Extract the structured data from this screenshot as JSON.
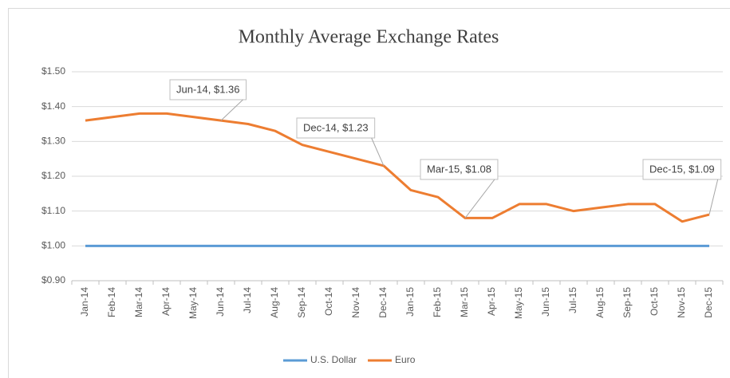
{
  "chart_data": {
    "type": "line",
    "title": "Monthly Average Exchange Rates",
    "categories": [
      "Jan-14",
      "Feb-14",
      "Mar-14",
      "Apr-14",
      "May-14",
      "Jun-14",
      "Jul-14",
      "Aug-14",
      "Sep-14",
      "Oct-14",
      "Nov-14",
      "Dec-14",
      "Jan-15",
      "Feb-15",
      "Mar-15",
      "Apr-15",
      "May-15",
      "Jun-15",
      "Jul-15",
      "Aug-15",
      "Sep-15",
      "Oct-15",
      "Nov-15",
      "Dec-15"
    ],
    "series": [
      {
        "name": "U.S. Dollar",
        "color": "#5b9bd5",
        "values": [
          1,
          1,
          1,
          1,
          1,
          1,
          1,
          1,
          1,
          1,
          1,
          1,
          1,
          1,
          1,
          1,
          1,
          1,
          1,
          1,
          1,
          1,
          1,
          1
        ]
      },
      {
        "name": "Euro",
        "color": "#ed7d31",
        "values": [
          1.36,
          1.37,
          1.38,
          1.38,
          1.37,
          1.36,
          1.35,
          1.33,
          1.29,
          1.27,
          1.25,
          1.23,
          1.16,
          1.14,
          1.08,
          1.08,
          1.12,
          1.12,
          1.1,
          1.11,
          1.12,
          1.12,
          1.07,
          1.09
        ],
        "value_labels": [
          null,
          null,
          null,
          null,
          null,
          "Jun-14, $1.36",
          null,
          null,
          null,
          null,
          null,
          "Dec-14, $1.23",
          null,
          null,
          "Mar-15, $1.08",
          null,
          null,
          null,
          null,
          null,
          null,
          null,
          null,
          "Dec-15, $1.09"
        ]
      }
    ],
    "ylim": [
      0.9,
      1.5
    ],
    "yticks": [
      {
        "value": 0.9,
        "label": "$0.90"
      },
      {
        "value": 1.0,
        "label": "$1.00"
      },
      {
        "value": 1.1,
        "label": "$1.10"
      },
      {
        "value": 1.2,
        "label": "$1.20"
      },
      {
        "value": 1.3,
        "label": "$1.30"
      },
      {
        "value": 1.4,
        "label": "$1.40"
      },
      {
        "value": 1.5,
        "label": "$1.50"
      }
    ],
    "grid": true,
    "legend": "bottom"
  }
}
